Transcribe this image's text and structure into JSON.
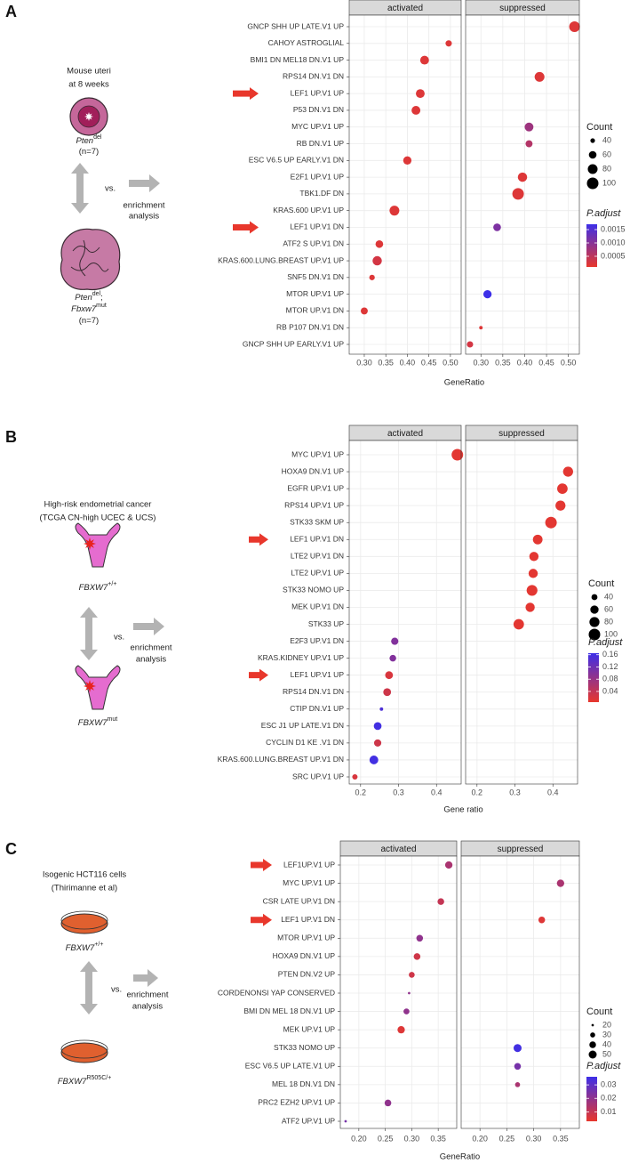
{
  "panels": [
    {
      "label": "A",
      "title": [
        "Mouse uteri",
        "at 8 weeks"
      ],
      "group1": [
        [
          "Pten",
          "del"
        ],
        [
          "(n=7)"
        ]
      ],
      "vs": "vs.",
      "method": [
        "enrichment",
        "analysis"
      ],
      "group2": [
        [
          "Pten",
          "del",
          ";"
        ],
        [
          "Fbxw7",
          "mut"
        ],
        [
          "(n=7)"
        ]
      ]
    },
    {
      "label": "B",
      "title": [
        "High-risk endometrial cancer",
        "(TCGA CN-high UCEC & UCS)"
      ],
      "group1": [
        [
          "FBXW7",
          "+/+"
        ]
      ],
      "vs": "vs.",
      "method": [
        "enrichment",
        "analysis"
      ],
      "group2": [
        [
          "FBXW7",
          "mut"
        ]
      ]
    },
    {
      "label": "C",
      "title": [
        "Isogenic HCT116 cells",
        "(Thirimanne et al)"
      ],
      "group1": [
        [
          "FBXW7",
          "+/+"
        ]
      ],
      "vs": "vs.",
      "method": [
        "enrichment",
        "analysis"
      ],
      "group2": [
        [
          "FBXW7",
          "R505C/+"
        ]
      ]
    }
  ],
  "chart_data": [
    {
      "type": "dot",
      "x_label": "GeneRatio",
      "grid": true,
      "categories": [
        "GNCP SHH UP LATE.V1 UP",
        "CAHOY ASTROGLIAL",
        "BMI1 DN MEL18 DN.V1 UP",
        "RPS14 DN.V1 DN",
        "LEF1 UP.V1 UP",
        "P53 DN.V1 DN",
        "MYC UP.V1 UP",
        "RB DN.V1 UP",
        "ESC V6.5 UP EARLY.V1 DN",
        "E2F1 UP.V1 UP",
        "TBK1.DF DN",
        "KRAS.600 UP.V1 UP",
        "LEF1 UP.V1 DN",
        "ATF2 S UP.V1 DN",
        "KRAS.600.LUNG.BREAST UP.V1 UP",
        "SNF5 DN.V1 DN",
        "MTOR UP.V1 UP",
        "MTOR UP.V1 DN",
        "RB P107 DN.V1 DN",
        "GNCP SHH UP EARLY.V1 UP"
      ],
      "series": [
        {
          "name": "activated",
          "values": [
            null,
            0.496,
            0.44,
            null,
            0.43,
            0.42,
            null,
            null,
            0.4,
            null,
            null,
            0.37,
            null,
            0.335,
            0.33,
            0.318,
            null,
            0.3,
            null,
            null
          ],
          "counts": [
            null,
            50,
            70,
            null,
            70,
            70,
            null,
            null,
            65,
            null,
            null,
            80,
            null,
            60,
            75,
            45,
            null,
            55,
            null,
            null
          ],
          "p_adjust": [
            null,
            0.0002,
            0.0002,
            null,
            0.0002,
            0.0002,
            null,
            null,
            0.0002,
            null,
            null,
            0.0002,
            null,
            0.0002,
            0.0003,
            0.0002,
            null,
            0.0002,
            null,
            null
          ]
        },
        {
          "name": "suppressed",
          "values": [
            0.514,
            null,
            null,
            0.434,
            null,
            null,
            0.41,
            0.41,
            null,
            0.395,
            0.385,
            null,
            0.337,
            null,
            null,
            null,
            0.315,
            null,
            0.3,
            0.275
          ],
          "counts": [
            90,
            null,
            null,
            80,
            null,
            null,
            70,
            55,
            null,
            75,
            100,
            null,
            60,
            null,
            null,
            null,
            65,
            null,
            35,
            50
          ],
          "p_adjust": [
            0.0002,
            null,
            null,
            0.0002,
            null,
            null,
            0.0008,
            0.0006,
            null,
            0.0002,
            0.0002,
            null,
            0.0011,
            null,
            null,
            null,
            0.0017,
            null,
            0.0002,
            0.0003
          ]
        }
      ],
      "xlim": [
        0.265,
        0.525
      ],
      "xticks": [
        {
          "value": 0.3,
          "label": "0.30"
        },
        0.35,
        {
          "value": 0.4,
          "label": "0.40"
        },
        0.45,
        {
          "value": 0.5,
          "label": "0.50"
        }
      ],
      "size_legend": {
        "title": "Count",
        "ticks": [
          40,
          60,
          80,
          100
        ]
      },
      "color_legend": {
        "title": "P.adjust",
        "lim": [
          0.0001,
          0.0017
        ],
        "ticks": [
          0.0015,
          {
            "value": 0.001,
            "label": "0.0010"
          },
          0.0005
        ],
        "low_color": "#e8372c",
        "high_color": "#3d2fe8"
      }
    },
    {
      "type": "dot",
      "x_label": "Gene ratio",
      "grid": true,
      "categories": [
        "MYC UP.V1 UP",
        "HOXA9 DN.V1 UP",
        "EGFR UP.V1 UP",
        "RPS14 UP.V1 UP",
        "STK33 SKM UP",
        "LEF1 UP.V1 DN",
        "LTE2 UP.V1 DN",
        "LTE2 UP.V1 UP",
        "STK33 NOMO UP",
        "MEK UP.V1 DN",
        "STK33 UP",
        "E2F3 UP.V1 DN",
        "KRAS.KIDNEY UP.V1 UP",
        "LEF1 UP.V1 UP",
        "RPS14 DN.V1 DN",
        "CTIP DN.V1 UP",
        "ESC J1 UP LATE.V1 DN",
        "CYCLIN D1 KE .V1 DN",
        "KRAS.600.LUNG.BREAST UP.V1 DN",
        "SRC UP.V1 UP"
      ],
      "series": [
        {
          "name": "activated",
          "values": [
            0.455,
            null,
            null,
            null,
            null,
            null,
            null,
            null,
            null,
            null,
            null,
            0.29,
            0.285,
            0.275,
            0.27,
            0.255,
            0.245,
            0.245,
            0.235,
            0.185
          ],
          "counts": [
            100,
            null,
            null,
            null,
            null,
            null,
            null,
            null,
            null,
            null,
            null,
            50,
            45,
            55,
            55,
            25,
            55,
            50,
            65,
            35
          ],
          "p_adjust": [
            0.01,
            null,
            null,
            null,
            null,
            null,
            null,
            null,
            null,
            null,
            null,
            0.1,
            0.1,
            0.02,
            0.03,
            0.15,
            0.16,
            0.03,
            0.16,
            0.02
          ]
        },
        {
          "name": "suppressed",
          "values": [
            null,
            0.44,
            0.425,
            0.42,
            0.395,
            0.36,
            0.35,
            0.348,
            0.345,
            0.34,
            0.31,
            null,
            null,
            null,
            null,
            null,
            null,
            null,
            null,
            null
          ],
          "counts": [
            null,
            80,
            85,
            80,
            100,
            75,
            70,
            70,
            90,
            70,
            85,
            null,
            null,
            null,
            null,
            null,
            null,
            null,
            null,
            null
          ],
          "p_adjust": [
            null,
            0.01,
            0.01,
            0.01,
            0.01,
            0.01,
            0.01,
            0.01,
            0.01,
            0.01,
            0.01,
            null,
            null,
            null,
            null,
            null,
            null,
            null,
            null,
            null
          ]
        }
      ],
      "xlim": [
        0.17,
        0.465
      ],
      "xticks": [
        0.2,
        0.3,
        0.4
      ],
      "size_legend": {
        "title": "Count",
        "ticks": [
          40,
          60,
          80,
          100
        ]
      },
      "color_legend": {
        "title": "P.adjust",
        "lim": [
          0.005,
          0.165
        ],
        "ticks": [
          0.16,
          0.12,
          0.08,
          0.04
        ],
        "low_color": "#e8372c",
        "high_color": "#3d2fe8"
      }
    },
    {
      "type": "dot",
      "x_label": "GeneRatio",
      "grid": true,
      "categories": [
        "LEF1UP.V1 UP",
        "MYC UP.V1 UP",
        "CSR LATE UP.V1 DN",
        "LEF1 UP.V1 DN",
        "MTOR UP.V1 UP",
        "HOXA9 DN.V1 UP",
        "PTEN DN.V2 UP",
        "CORDENONSI YAP CONSERVED",
        "BMI DN MEL 18 DN.V1 UP",
        "MEK UP.V1 UP",
        "STK33 NOMO UP",
        "ESC V6.5 UP LATE.V1 UP",
        "MEL 18 DN.V1 DN",
        "PRC2 EZH2 UP.V1 UP",
        "ATF2 UP.V1 UP"
      ],
      "series": [
        {
          "name": "activated",
          "values": [
            0.37,
            null,
            0.355,
            null,
            0.315,
            0.31,
            0.3,
            0.295,
            0.29,
            0.28,
            null,
            null,
            null,
            0.255,
            0.175
          ],
          "counts": [
            45,
            null,
            40,
            null,
            40,
            40,
            35,
            20,
            35,
            45,
            null,
            null,
            null,
            40,
            20
          ],
          "p_adjust": [
            0.015,
            null,
            0.01,
            null,
            0.02,
            0.008,
            0.008,
            0.02,
            0.02,
            0.005,
            null,
            null,
            null,
            0.02,
            0.025
          ]
        },
        {
          "name": "suppressed",
          "values": [
            null,
            0.35,
            null,
            0.315,
            null,
            null,
            null,
            null,
            null,
            null,
            0.27,
            0.27,
            0.27,
            null,
            null
          ],
          "counts": [
            null,
            45,
            null,
            40,
            null,
            null,
            null,
            null,
            null,
            null,
            50,
            40,
            30,
            null,
            null
          ],
          "p_adjust": [
            null,
            0.015,
            null,
            0.005,
            null,
            null,
            null,
            null,
            null,
            null,
            0.035,
            0.025,
            0.015,
            null,
            null
          ]
        }
      ],
      "xlim": [
        0.165,
        0.385
      ],
      "xticks": [
        {
          "value": 0.2,
          "label": "0.20"
        },
        0.25,
        {
          "value": 0.3,
          "label": "0.30"
        },
        0.35
      ],
      "size_legend": {
        "title": "Count",
        "ticks": [
          20,
          30,
          40,
          50
        ]
      },
      "color_legend": {
        "title": "P.adjust",
        "lim": [
          0.003,
          0.036
        ],
        "ticks": [
          0.03,
          0.02,
          0.01
        ],
        "low_color": "#e8372c",
        "high_color": "#3d2fe8"
      }
    }
  ]
}
